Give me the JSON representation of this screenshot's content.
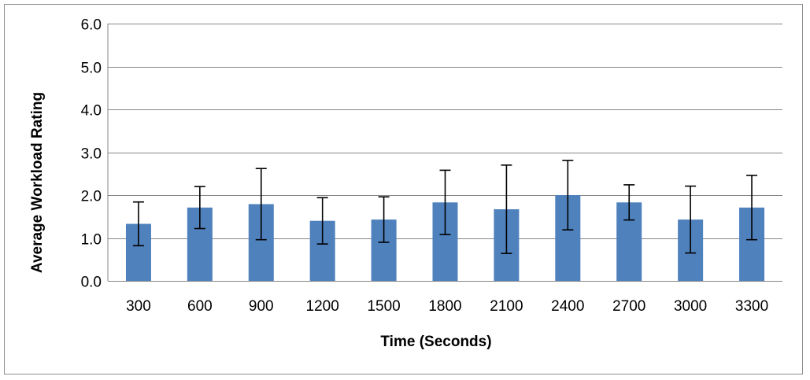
{
  "chart_data": {
    "type": "bar",
    "title": "",
    "xlabel": "Time (Seconds)",
    "ylabel": "Average Workload Rating",
    "categories": [
      "300",
      "600",
      "900",
      "1200",
      "1500",
      "1800",
      "2100",
      "2400",
      "2700",
      "3000",
      "3300"
    ],
    "values": [
      1.33,
      1.71,
      1.79,
      1.4,
      1.43,
      1.83,
      1.67,
      2.0,
      1.83,
      1.43,
      1.71
    ],
    "error_low": [
      0.82,
      1.22,
      0.96,
      0.86,
      0.9,
      1.08,
      0.64,
      1.19,
      1.42,
      0.65,
      0.96
    ],
    "error_high": [
      1.84,
      2.2,
      2.62,
      1.94,
      1.96,
      2.58,
      2.7,
      2.81,
      2.24,
      2.21,
      2.46
    ],
    "ylim": [
      0,
      6
    ],
    "yticks": [
      "0.0",
      "1.0",
      "2.0",
      "3.0",
      "4.0",
      "5.0",
      "6.0"
    ],
    "grid": true,
    "legend": "none",
    "bar_color": "#4f81bd",
    "error_bar_color": "#000000",
    "grid_color": "#868686"
  }
}
